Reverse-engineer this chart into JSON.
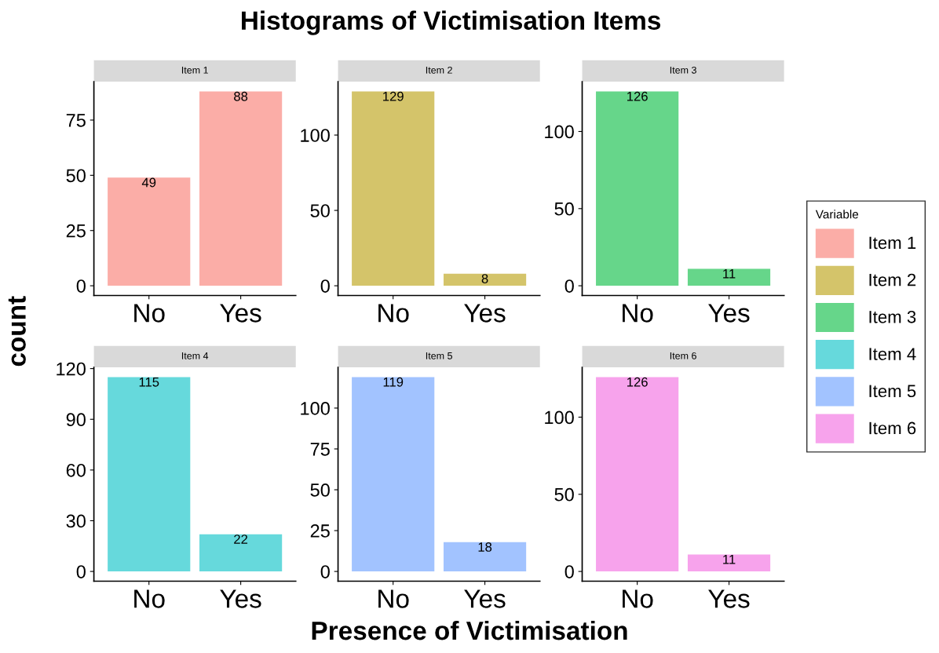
{
  "chart_data": [
    {
      "type": "bar",
      "title": "Item 1",
      "annotations": [
        "Histograms of Victimisation Items"
      ],
      "ylabel": "count",
      "legend_title": "Variable",
      "legend": "right",
      "grid": false,
      "data_labels": true,
      "categories": [
        "No",
        "Yes"
      ],
      "ylim": [
        -4.4,
        92.4
      ],
      "yticks": [
        0,
        25,
        50,
        75
      ],
      "series": [
        {
          "name": "Item 1",
          "color": "#fbada7",
          "values": [
            49,
            88
          ]
        }
      ]
    },
    {
      "type": "bar",
      "title": "Item 2",
      "legend": "right",
      "grid": false,
      "data_labels": true,
      "categories": [
        "No",
        "Yes"
      ],
      "ylim": [
        -6.45,
        135.45
      ],
      "yticks": [
        0,
        50,
        100
      ],
      "series": [
        {
          "name": "Item 2",
          "color": "#d4c46a",
          "values": [
            129,
            8
          ]
        }
      ]
    },
    {
      "type": "bar",
      "title": "Item 3",
      "legend": "right",
      "grid": false,
      "data_labels": true,
      "categories": [
        "No",
        "Yes"
      ],
      "ylim": [
        -6.3,
        132.3
      ],
      "yticks": [
        0,
        50,
        100
      ],
      "series": [
        {
          "name": "Item 3",
          "color": "#66d68a",
          "values": [
            126,
            11
          ]
        }
      ]
    },
    {
      "type": "bar",
      "title": "Item 4",
      "legend": "right",
      "grid": false,
      "data_labels": true,
      "categories": [
        "No",
        "Yes"
      ],
      "ylim": [
        -5.75,
        120.75
      ],
      "yticks": [
        0,
        30,
        60,
        90,
        120
      ],
      "series": [
        {
          "name": "Item 4",
          "color": "#66d9dc",
          "values": [
            115,
            22
          ]
        }
      ]
    },
    {
      "type": "bar",
      "title": "Item 5",
      "xlabel": "Presence of Victimisation",
      "legend": "right",
      "grid": false,
      "data_labels": true,
      "categories": [
        "No",
        "Yes"
      ],
      "ylim": [
        -5.95,
        124.95
      ],
      "yticks": [
        0,
        25,
        50,
        75,
        100
      ],
      "series": [
        {
          "name": "Item 5",
          "color": "#a2c3ff",
          "values": [
            119,
            18
          ]
        }
      ]
    },
    {
      "type": "bar",
      "title": "Item 6",
      "legend": "right",
      "grid": false,
      "data_labels": true,
      "categories": [
        "No",
        "Yes"
      ],
      "ylim": [
        -6.3,
        132.3
      ],
      "yticks": [
        0,
        50,
        100
      ],
      "series": [
        {
          "name": "Item 6",
          "color": "#f7a3ec",
          "values": [
            126,
            11
          ]
        }
      ]
    }
  ]
}
